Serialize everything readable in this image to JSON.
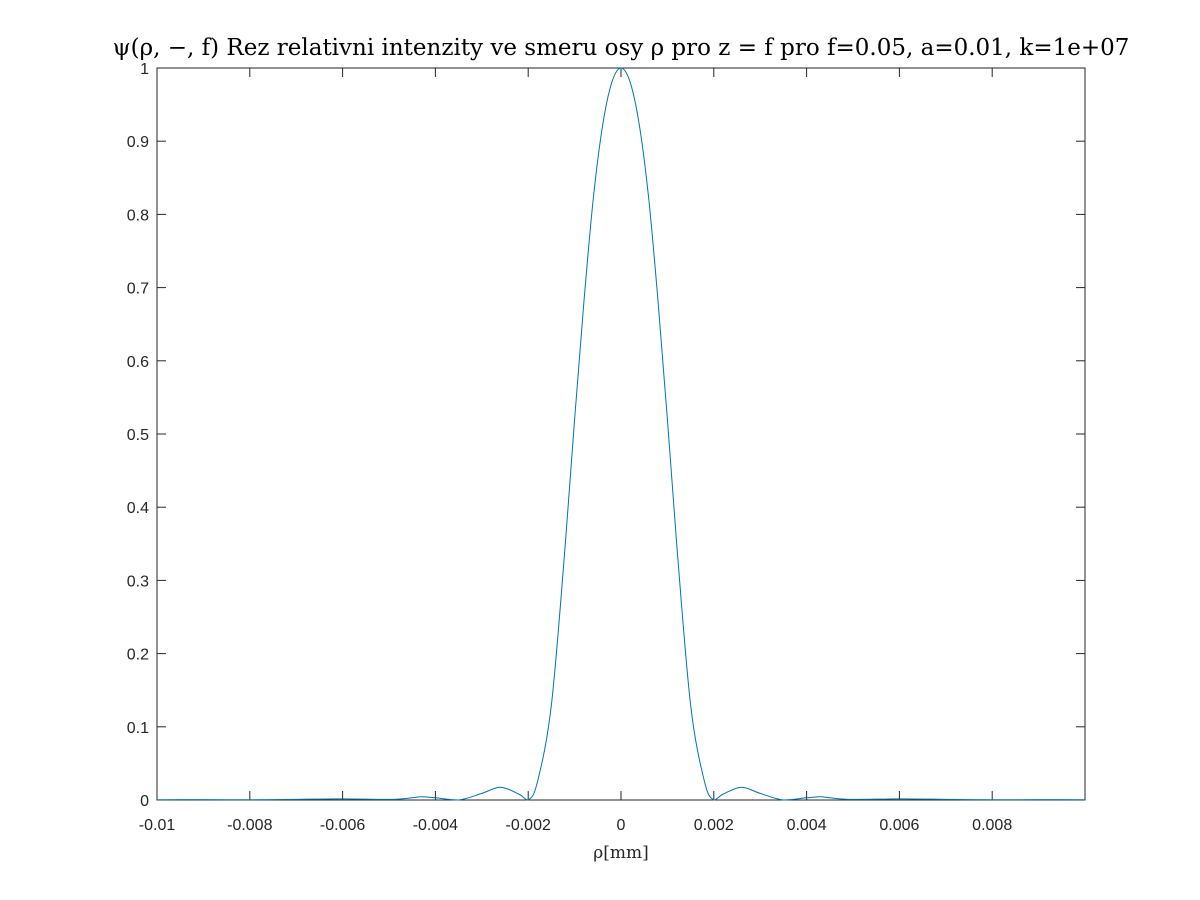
{
  "chart_data": {
    "type": "line",
    "title": "ψ(ρ, −, f) Rez relativni intenzity ve smeru osy ρ pro z = f pro f=0.05, a=0.01, k=1e+07",
    "xlabel": "ρ[mm]",
    "ylabel": "",
    "xlim": [
      -0.01,
      0.01
    ],
    "ylim": [
      0,
      1
    ],
    "grid": false,
    "legend": "none",
    "x_ticks": [
      -0.01,
      -0.008,
      -0.006,
      -0.004,
      -0.002,
      0,
      0.002,
      0.004,
      0.006,
      0.008
    ],
    "x_tick_labels": [
      "-0.01",
      "-0.008",
      "-0.006",
      "-0.004",
      "-0.002",
      "0",
      "0.002",
      "0.004",
      "0.006",
      "0.008"
    ],
    "y_ticks": [
      0,
      0.1,
      0.2,
      0.3,
      0.4,
      0.5,
      0.6,
      0.7,
      0.8,
      0.9,
      1
    ],
    "y_tick_labels": [
      "0",
      "0.1",
      "0.2",
      "0.3",
      "0.4",
      "0.5",
      "0.6",
      "0.7",
      "0.8",
      "0.9",
      "1"
    ],
    "line_color": "#0072bd",
    "axis_color": "#262626",
    "series": [
      {
        "x": [
          -0.01,
          -0.009,
          -0.008,
          -0.007,
          -0.006,
          -0.005,
          -0.0045,
          -0.0043,
          -0.004,
          -0.0035,
          -0.003,
          -0.0026,
          -0.0022,
          -0.002,
          -0.0018,
          -0.0015,
          -0.0012,
          -0.001,
          -0.0008,
          -0.0006,
          -0.0004,
          -0.0002,
          0,
          0.0002,
          0.0004,
          0.0006,
          0.0008,
          0.001,
          0.0012,
          0.0015,
          0.0018,
          0.002,
          0.0022,
          0.0026,
          0.003,
          0.0035,
          0.004,
          0.0043,
          0.0045,
          0.005,
          0.006,
          0.007,
          0.008,
          0.009,
          0.01
        ],
        "y": [
          0.0003,
          0.0005,
          0.0003,
          0.0009,
          0.0015,
          0.0008,
          0.003,
          0.0045,
          0.003,
          0.0,
          0.009,
          0.0175,
          0.008,
          0.0,
          0.025,
          0.13,
          0.35,
          0.52,
          0.68,
          0.82,
          0.92,
          0.98,
          1.0,
          0.98,
          0.92,
          0.82,
          0.68,
          0.52,
          0.35,
          0.13,
          0.025,
          0.0,
          0.008,
          0.0175,
          0.009,
          0.0,
          0.003,
          0.0045,
          0.003,
          0.0008,
          0.0015,
          0.0009,
          0.0003,
          0.0005,
          0.0003
        ]
      }
    ]
  }
}
